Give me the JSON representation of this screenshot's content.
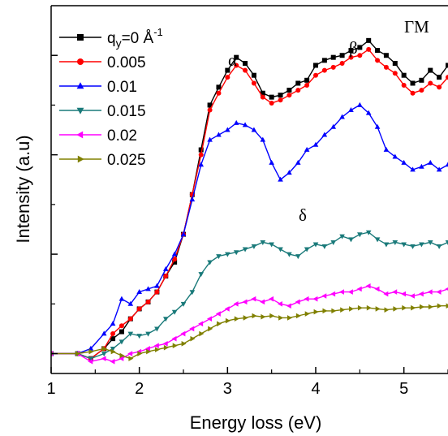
{
  "chart_data": {
    "type": "line",
    "xlabel": "Energy loss (eV)",
    "ylabel": "Intensity (a.u)",
    "xlim": [
      1,
      5.5
    ],
    "ylim": [
      -0.2,
      3.5
    ],
    "xticks": [
      "1",
      "2",
      "3",
      "4",
      "5"
    ],
    "grid": false,
    "legend_position": "top-left",
    "annotations": [
      "ΓM",
      "α",
      "β",
      "δ"
    ],
    "series": [
      {
        "name": "q_y=0 Å⁻¹",
        "label_main": "q",
        "label_sub": "y",
        "label_tail": "=0 Å",
        "label_sup": "-1",
        "color": "#000000",
        "marker": "square",
        "x": [
          1.0,
          1.3,
          1.45,
          1.6,
          1.7,
          1.8,
          1.9,
          2.0,
          2.1,
          2.2,
          2.3,
          2.4,
          2.5,
          2.6,
          2.7,
          2.8,
          2.9,
          3.0,
          3.1,
          3.2,
          3.3,
          3.4,
          3.5,
          3.6,
          3.7,
          3.8,
          3.9,
          4.0,
          4.1,
          4.2,
          4.3,
          4.4,
          4.5,
          4.6,
          4.7,
          4.8,
          4.9,
          5.0,
          5.1,
          5.2,
          5.3,
          5.4,
          5.5
        ],
        "y": [
          0.0,
          0.0,
          -0.05,
          0.05,
          0.15,
          0.22,
          0.35,
          0.45,
          0.52,
          0.62,
          0.78,
          0.92,
          1.2,
          1.6,
          2.05,
          2.5,
          2.68,
          2.85,
          2.98,
          2.92,
          2.8,
          2.62,
          2.58,
          2.6,
          2.65,
          2.72,
          2.75,
          2.9,
          2.95,
          2.98,
          3.0,
          3.05,
          3.08,
          3.15,
          3.05,
          3.0,
          2.92,
          2.8,
          2.72,
          2.75,
          2.85,
          2.78,
          2.9
        ]
      },
      {
        "name": "0.005",
        "color": "#ff0000",
        "marker": "circle",
        "x": [
          1.0,
          1.3,
          1.45,
          1.6,
          1.7,
          1.8,
          1.9,
          2.0,
          2.1,
          2.2,
          2.3,
          2.4,
          2.5,
          2.6,
          2.7,
          2.8,
          2.9,
          3.0,
          3.1,
          3.2,
          3.3,
          3.4,
          3.5,
          3.6,
          3.7,
          3.8,
          3.9,
          4.0,
          4.1,
          4.2,
          4.3,
          4.4,
          4.5,
          4.6,
          4.7,
          4.8,
          4.9,
          5.0,
          5.1,
          5.2,
          5.3,
          5.4,
          5.5
        ],
        "y": [
          0.0,
          0.0,
          -0.05,
          0.05,
          0.2,
          0.28,
          0.35,
          0.45,
          0.52,
          0.62,
          0.78,
          0.95,
          1.2,
          1.6,
          2.0,
          2.45,
          2.62,
          2.78,
          2.9,
          2.85,
          2.72,
          2.58,
          2.52,
          2.55,
          2.6,
          2.65,
          2.7,
          2.8,
          2.85,
          2.88,
          2.92,
          2.98,
          3.0,
          3.06,
          2.95,
          2.88,
          2.82,
          2.7,
          2.62,
          2.65,
          2.72,
          2.68,
          2.78
        ]
      },
      {
        "name": "0.01",
        "color": "#0000ff",
        "marker": "triangle-up",
        "x": [
          1.0,
          1.3,
          1.45,
          1.6,
          1.7,
          1.8,
          1.9,
          2.0,
          2.1,
          2.2,
          2.3,
          2.4,
          2.5,
          2.6,
          2.7,
          2.8,
          2.9,
          3.0,
          3.1,
          3.2,
          3.3,
          3.4,
          3.5,
          3.6,
          3.7,
          3.8,
          3.9,
          4.0,
          4.1,
          4.2,
          4.3,
          4.4,
          4.5,
          4.6,
          4.7,
          4.8,
          4.9,
          5.0,
          5.1,
          5.2,
          5.3,
          5.4,
          5.5
        ],
        "y": [
          0.0,
          0.0,
          0.05,
          0.2,
          0.3,
          0.55,
          0.5,
          0.62,
          0.65,
          0.68,
          0.85,
          1.0,
          1.2,
          1.55,
          1.9,
          2.15,
          2.2,
          2.25,
          2.32,
          2.3,
          2.25,
          2.15,
          1.92,
          1.75,
          1.82,
          1.92,
          2.05,
          2.1,
          2.2,
          2.28,
          2.38,
          2.45,
          2.5,
          2.42,
          2.28,
          2.05,
          1.98,
          1.92,
          1.85,
          1.88,
          1.92,
          1.85,
          1.9
        ]
      },
      {
        "name": "0.015",
        "color": "#1a7a7a",
        "marker": "triangle-down",
        "x": [
          1.0,
          1.3,
          1.45,
          1.6,
          1.7,
          1.8,
          1.9,
          2.0,
          2.1,
          2.2,
          2.3,
          2.4,
          2.5,
          2.6,
          2.7,
          2.8,
          2.9,
          3.0,
          3.1,
          3.2,
          3.3,
          3.4,
          3.5,
          3.6,
          3.7,
          3.8,
          3.9,
          4.0,
          4.1,
          4.2,
          4.3,
          4.4,
          4.5,
          4.6,
          4.7,
          4.8,
          4.9,
          5.0,
          5.1,
          5.2,
          5.3,
          5.4,
          5.5
        ],
        "y": [
          0.0,
          0.0,
          -0.05,
          0.0,
          0.05,
          0.12,
          0.2,
          0.18,
          0.2,
          0.25,
          0.35,
          0.42,
          0.5,
          0.62,
          0.8,
          0.92,
          0.98,
          1.0,
          1.02,
          1.05,
          1.08,
          1.12,
          1.1,
          1.05,
          1.0,
          0.98,
          1.05,
          1.1,
          1.08,
          1.12,
          1.18,
          1.15,
          1.2,
          1.22,
          1.15,
          1.1,
          1.12,
          1.1,
          1.08,
          1.1,
          1.12,
          1.08,
          1.12
        ]
      },
      {
        "name": "0.02",
        "color": "#ff00ff",
        "marker": "triangle-left",
        "x": [
          1.0,
          1.3,
          1.45,
          1.6,
          1.7,
          1.8,
          1.9,
          2.0,
          2.1,
          2.2,
          2.3,
          2.4,
          2.5,
          2.6,
          2.7,
          2.8,
          2.9,
          3.0,
          3.1,
          3.2,
          3.3,
          3.4,
          3.5,
          3.6,
          3.7,
          3.8,
          3.9,
          4.0,
          4.1,
          4.2,
          4.3,
          4.4,
          4.5,
          4.6,
          4.7,
          4.8,
          4.9,
          5.0,
          5.1,
          5.2,
          5.3,
          5.4,
          5.5
        ],
        "y": [
          0.0,
          0.0,
          -0.08,
          -0.05,
          -0.08,
          -0.05,
          0.0,
          0.02,
          0.05,
          0.08,
          0.1,
          0.15,
          0.2,
          0.25,
          0.3,
          0.35,
          0.4,
          0.45,
          0.5,
          0.52,
          0.55,
          0.52,
          0.55,
          0.5,
          0.48,
          0.52,
          0.55,
          0.55,
          0.58,
          0.6,
          0.62,
          0.62,
          0.65,
          0.68,
          0.65,
          0.6,
          0.62,
          0.6,
          0.58,
          0.6,
          0.62,
          0.62,
          0.65
        ]
      },
      {
        "name": "0.025",
        "color": "#808000",
        "marker": "triangle-right",
        "x": [
          1.0,
          1.3,
          1.45,
          1.6,
          1.7,
          1.8,
          1.9,
          2.0,
          2.1,
          2.2,
          2.3,
          2.4,
          2.5,
          2.6,
          2.7,
          2.8,
          2.9,
          3.0,
          3.1,
          3.2,
          3.3,
          3.4,
          3.5,
          3.6,
          3.7,
          3.8,
          3.9,
          4.0,
          4.1,
          4.2,
          4.3,
          4.4,
          4.5,
          4.6,
          4.7,
          4.8,
          4.9,
          5.0,
          5.1,
          5.2,
          5.3,
          5.4,
          5.5
        ],
        "y": [
          0.0,
          0.0,
          0.02,
          0.05,
          0.02,
          -0.02,
          -0.05,
          0.0,
          0.02,
          0.04,
          0.06,
          0.08,
          0.1,
          0.15,
          0.2,
          0.25,
          0.3,
          0.33,
          0.35,
          0.36,
          0.38,
          0.37,
          0.38,
          0.36,
          0.36,
          0.38,
          0.4,
          0.42,
          0.43,
          0.43,
          0.44,
          0.45,
          0.46,
          0.46,
          0.45,
          0.44,
          0.45,
          0.46,
          0.46,
          0.47,
          0.47,
          0.48,
          0.48
        ]
      }
    ]
  }
}
